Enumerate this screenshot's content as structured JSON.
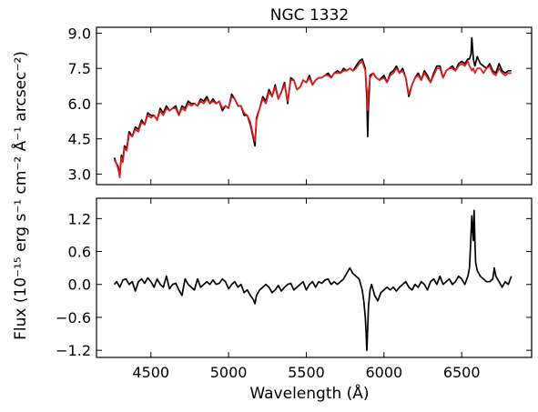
{
  "chart_data": {
    "title": "NGC 1332",
    "xlabel": "Wavelength (Å)",
    "ylabel": "Flux (10⁻¹⁵ erg s⁻¹ cm⁻² Å⁻¹ arcsec⁻²)",
    "xlim": [
      4150,
      6950
    ],
    "xticks": [
      4500,
      5000,
      5500,
      6000,
      6500
    ],
    "panels": [
      {
        "type": "line",
        "ylim": [
          2.55,
          9.25
        ],
        "yticks": [
          3.0,
          4.5,
          6.0,
          7.5,
          9.0
        ],
        "ytick_labels": [
          "3.0",
          "4.5",
          "6.0",
          "7.5",
          "9.0"
        ],
        "series": [
          {
            "color": "#000000",
            "x": [
              4265,
              4275,
              4290,
              4300,
              4310,
              4320,
              4330,
              4345,
              4360,
              4380,
              4400,
              4420,
              4440,
              4460,
              4480,
              4500,
              4520,
              4540,
              4560,
              4580,
              4600,
              4620,
              4640,
              4660,
              4680,
              4700,
              4720,
              4740,
              4760,
              4780,
              4800,
              4820,
              4840,
              4860,
              4880,
              4900,
              4920,
              4940,
              4960,
              4980,
              5000,
              5020,
              5040,
              5060,
              5080,
              5100,
              5120,
              5140,
              5160,
              5170,
              5180,
              5200,
              5220,
              5240,
              5260,
              5280,
              5300,
              5320,
              5340,
              5360,
              5380,
              5400,
              5420,
              5440,
              5460,
              5480,
              5500,
              5520,
              5540,
              5560,
              5580,
              5600,
              5620,
              5640,
              5660,
              5680,
              5700,
              5720,
              5740,
              5760,
              5780,
              5800,
              5820,
              5840,
              5860,
              5870,
              5880,
              5890,
              5895,
              5900,
              5910,
              5930,
              5950,
              5970,
              6000,
              6020,
              6040,
              6060,
              6080,
              6100,
              6120,
              6140,
              6160,
              6180,
              6200,
              6220,
              6240,
              6260,
              6280,
              6300,
              6320,
              6340,
              6360,
              6380,
              6400,
              6420,
              6440,
              6460,
              6480,
              6500,
              6520,
              6540,
              6550,
              6560,
              6565,
              6575,
              6585,
              6600,
              6620,
              6640,
              6660,
              6680,
              6700,
              6720,
              6740,
              6760,
              6780,
              6800,
              6820
            ],
            "y": [
              3.7,
              3.5,
              3.3,
              2.95,
              3.8,
              3.6,
              4.2,
              4.1,
              4.8,
              4.6,
              5.0,
              4.9,
              5.3,
              5.1,
              5.6,
              5.5,
              5.5,
              5.3,
              5.8,
              5.6,
              5.9,
              5.7,
              5.8,
              5.9,
              5.5,
              5.9,
              5.8,
              6.1,
              6.0,
              6.0,
              5.9,
              6.2,
              6.1,
              6.3,
              6.0,
              6.2,
              6.0,
              6.1,
              5.7,
              5.9,
              5.8,
              6.4,
              6.2,
              5.9,
              5.9,
              5.5,
              5.5,
              5.1,
              4.5,
              4.2,
              5.4,
              5.8,
              6.3,
              6.1,
              6.6,
              6.3,
              6.8,
              6.2,
              6.5,
              6.9,
              6.0,
              7.1,
              7.0,
              6.6,
              6.7,
              7.0,
              6.9,
              7.2,
              6.8,
              7.0,
              7.1,
              7.1,
              7.2,
              7.3,
              7.1,
              7.3,
              7.4,
              7.3,
              7.5,
              7.4,
              7.5,
              7.4,
              7.6,
              7.8,
              7.9,
              7.7,
              7.5,
              6.2,
              4.6,
              5.9,
              7.2,
              7.3,
              7.1,
              7.0,
              7.2,
              6.9,
              7.3,
              7.4,
              7.6,
              7.3,
              7.5,
              7.1,
              6.3,
              6.8,
              7.1,
              7.3,
              7.0,
              7.4,
              7.2,
              6.9,
              7.3,
              7.6,
              7.6,
              7.1,
              7.4,
              7.5,
              7.6,
              7.4,
              7.7,
              7.8,
              7.7,
              7.9,
              7.9,
              8.1,
              8.8,
              7.9,
              7.6,
              8.0,
              7.7,
              7.6,
              7.5,
              7.7,
              7.4,
              7.3,
              7.7,
              7.4,
              7.3,
              7.4,
              7.4
            ]
          },
          {
            "color": "#e31a1c",
            "x": [
              4265,
              4275,
              4290,
              4300,
              4310,
              4320,
              4330,
              4345,
              4360,
              4380,
              4400,
              4420,
              4440,
              4460,
              4480,
              4500,
              4520,
              4540,
              4560,
              4580,
              4600,
              4620,
              4640,
              4660,
              4680,
              4700,
              4720,
              4740,
              4760,
              4780,
              4800,
              4820,
              4840,
              4860,
              4880,
              4900,
              4920,
              4940,
              4960,
              4980,
              5000,
              5020,
              5040,
              5060,
              5080,
              5100,
              5120,
              5140,
              5160,
              5170,
              5180,
              5200,
              5220,
              5240,
              5260,
              5280,
              5300,
              5320,
              5340,
              5360,
              5380,
              5400,
              5420,
              5440,
              5460,
              5480,
              5500,
              5520,
              5540,
              5560,
              5580,
              5600,
              5620,
              5640,
              5660,
              5680,
              5700,
              5720,
              5740,
              5760,
              5780,
              5800,
              5820,
              5840,
              5860,
              5870,
              5880,
              5890,
              5895,
              5900,
              5910,
              5930,
              5950,
              5970,
              6000,
              6020,
              6040,
              6060,
              6080,
              6100,
              6120,
              6140,
              6160,
              6180,
              6200,
              6220,
              6240,
              6260,
              6280,
              6300,
              6320,
              6340,
              6360,
              6380,
              6400,
              6420,
              6440,
              6460,
              6480,
              6500,
              6520,
              6540,
              6550,
              6560,
              6565,
              6575,
              6585,
              6600,
              6620,
              6640,
              6660,
              6680,
              6700,
              6720,
              6740,
              6760,
              6780,
              6800,
              6820
            ],
            "y": [
              3.6,
              3.5,
              3.2,
              2.85,
              3.7,
              3.5,
              4.1,
              4.0,
              4.7,
              4.6,
              4.9,
              4.8,
              5.2,
              5.1,
              5.5,
              5.4,
              5.5,
              5.3,
              5.7,
              5.5,
              5.8,
              5.7,
              5.8,
              5.8,
              5.5,
              5.8,
              5.7,
              6.0,
              5.9,
              6.0,
              5.9,
              6.1,
              6.0,
              6.2,
              6.0,
              6.1,
              6.0,
              6.1,
              5.8,
              5.9,
              5.8,
              6.3,
              6.2,
              5.9,
              5.9,
              5.6,
              5.5,
              5.2,
              4.6,
              4.4,
              5.3,
              5.8,
              6.2,
              6.0,
              6.5,
              6.3,
              6.7,
              6.2,
              6.5,
              6.8,
              6.1,
              7.0,
              7.0,
              6.6,
              6.7,
              7.0,
              6.9,
              7.1,
              6.8,
              7.0,
              7.1,
              7.1,
              7.2,
              7.2,
              7.1,
              7.3,
              7.3,
              7.3,
              7.4,
              7.4,
              7.5,
              7.4,
              7.5,
              7.7,
              7.8,
              7.6,
              7.4,
              6.6,
              5.7,
              6.5,
              7.1,
              7.3,
              7.1,
              7.0,
              7.1,
              6.9,
              7.2,
              7.3,
              7.5,
              7.3,
              7.4,
              7.1,
              6.4,
              6.8,
              7.1,
              7.2,
              7.0,
              7.3,
              7.1,
              6.9,
              7.2,
              7.5,
              7.5,
              7.1,
              7.4,
              7.5,
              7.5,
              7.4,
              7.6,
              7.7,
              7.6,
              7.8,
              7.6,
              7.5,
              7.4,
              7.5,
              7.3,
              7.5,
              7.5,
              7.3,
              7.5,
              7.6,
              7.3,
              7.2,
              7.5,
              7.3,
              7.2,
              7.3,
              7.3
            ]
          }
        ]
      },
      {
        "type": "line",
        "ylim": [
          -1.33,
          1.57
        ],
        "yticks": [
          -1.2,
          -0.6,
          0.0,
          0.6,
          1.2
        ],
        "ytick_labels": [
          "−1.2",
          "−0.6",
          "0.0",
          "0.6",
          "1.2"
        ],
        "series": [
          {
            "color": "#000000",
            "x": [
              4265,
              4280,
              4300,
              4320,
              4340,
              4360,
              4380,
              4400,
              4420,
              4440,
              4460,
              4480,
              4500,
              4520,
              4540,
              4560,
              4580,
              4600,
              4620,
              4640,
              4660,
              4680,
              4700,
              4720,
              4740,
              4760,
              4780,
              4800,
              4820,
              4840,
              4860,
              4880,
              4900,
              4920,
              4940,
              4960,
              4980,
              5000,
              5020,
              5040,
              5060,
              5080,
              5100,
              5120,
              5140,
              5160,
              5170,
              5180,
              5200,
              5220,
              5240,
              5260,
              5280,
              5300,
              5320,
              5340,
              5360,
              5380,
              5400,
              5420,
              5440,
              5460,
              5480,
              5500,
              5520,
              5540,
              5560,
              5580,
              5600,
              5620,
              5640,
              5660,
              5680,
              5700,
              5720,
              5740,
              5760,
              5780,
              5800,
              5820,
              5840,
              5860,
              5870,
              5880,
              5885,
              5890,
              5895,
              5900,
              5910,
              5920,
              5940,
              5960,
              5980,
              6000,
              6020,
              6040,
              6060,
              6080,
              6100,
              6120,
              6140,
              6160,
              6180,
              6200,
              6220,
              6240,
              6260,
              6280,
              6300,
              6320,
              6340,
              6360,
              6380,
              6400,
              6420,
              6440,
              6460,
              6480,
              6500,
              6520,
              6540,
              6550,
              6555,
              6560,
              6565,
              6570,
              6575,
              6580,
              6585,
              6590,
              6600,
              6620,
              6640,
              6660,
              6680,
              6700,
              6710,
              6720,
              6740,
              6760,
              6780,
              6800,
              6820
            ],
            "y": [
              0.0,
              0.05,
              -0.05,
              0.08,
              0.1,
              0.0,
              0.05,
              -0.12,
              0.05,
              0.1,
              0.02,
              0.12,
              0.05,
              -0.05,
              0.1,
              0.0,
              -0.05,
              0.15,
              -0.08,
              0.0,
              0.02,
              -0.1,
              -0.2,
              0.1,
              0.0,
              -0.05,
              -0.1,
              0.1,
              -0.05,
              0.0,
              0.05,
              0.0,
              0.08,
              0.0,
              0.02,
              0.1,
              0.05,
              -0.08,
              0.0,
              0.05,
              -0.05,
              0.0,
              -0.15,
              -0.1,
              -0.2,
              -0.28,
              -0.35,
              -0.2,
              -0.1,
              -0.05,
              0.0,
              -0.05,
              -0.15,
              -0.1,
              -0.02,
              -0.12,
              -0.05,
              0.0,
              0.02,
              -0.1,
              -0.05,
              0.0,
              0.05,
              -0.1,
              0.0,
              0.05,
              -0.05,
              0.05,
              0.02,
              0.08,
              0.1,
              0.0,
              0.05,
              0.0,
              0.05,
              0.1,
              0.2,
              0.3,
              0.2,
              0.15,
              0.1,
              -0.1,
              -0.3,
              -0.6,
              -0.9,
              -1.2,
              -0.8,
              -0.4,
              -0.1,
              0.0,
              -0.2,
              -0.3,
              -0.15,
              -0.1,
              -0.05,
              -0.1,
              -0.05,
              -0.12,
              -0.05,
              0.0,
              0.05,
              -0.05,
              -0.1,
              0.0,
              -0.05,
              0.05,
              0.0,
              -0.1,
              0.05,
              0.1,
              0.0,
              0.15,
              0.0,
              0.05,
              0.1,
              0.0,
              0.05,
              0.15,
              0.1,
              0.0,
              0.15,
              0.3,
              0.6,
              0.9,
              1.25,
              1.0,
              0.8,
              1.35,
              0.8,
              0.4,
              0.25,
              0.15,
              0.1,
              0.05,
              0.05,
              0.1,
              0.3,
              0.15,
              0.05,
              -0.05,
              0.05,
              0.0,
              0.15
            ]
          }
        ]
      }
    ]
  }
}
